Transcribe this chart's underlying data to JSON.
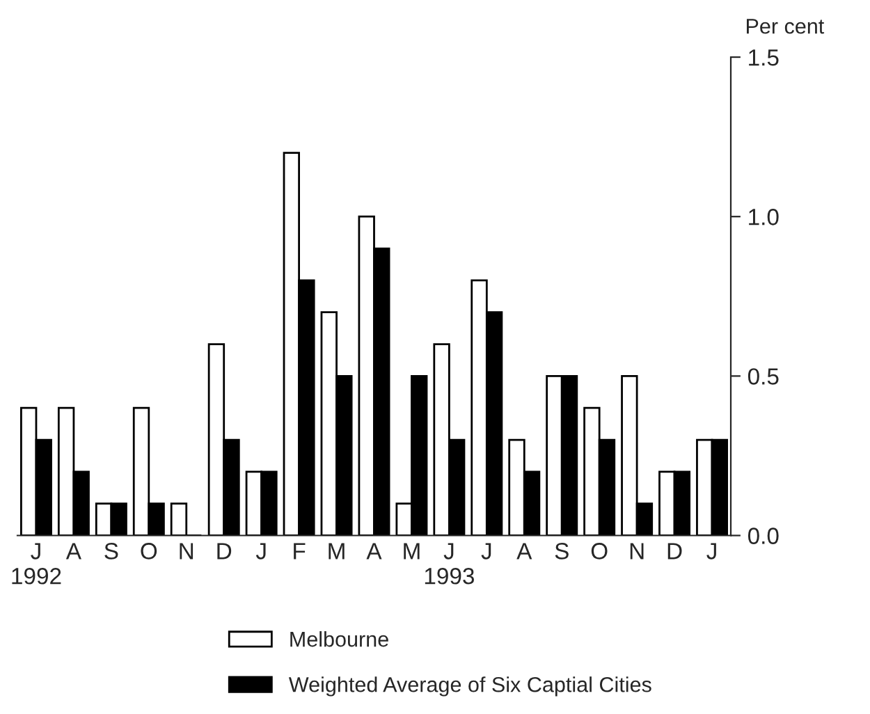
{
  "chart_data": {
    "type": "bar",
    "ylabel": "Per cent",
    "categories": [
      "J\n1992",
      "A",
      "S",
      "O",
      "N",
      "D",
      "J",
      "F",
      "M",
      "A",
      "M",
      "J\n1993",
      "J",
      "A",
      "S",
      "O",
      "N",
      "D",
      "J"
    ],
    "series": [
      {
        "name": "Melbourne",
        "color": "#ffffff",
        "values": [
          0.4,
          0.4,
          0.1,
          0.4,
          0.1,
          0.6,
          0.2,
          1.2,
          0.7,
          1.0,
          0.1,
          0.6,
          0.8,
          0.3,
          0.5,
          0.4,
          0.5,
          0.2,
          0.3
        ]
      },
      {
        "name": "Weighted Average of Six Captial Cities",
        "color": "#000000",
        "values": [
          0.3,
          0.2,
          0.1,
          0.1,
          0.0,
          0.3,
          0.2,
          0.8,
          0.5,
          0.9,
          0.5,
          0.3,
          0.7,
          0.2,
          0.5,
          0.3,
          0.1,
          0.2,
          0.3
        ]
      }
    ],
    "ylim": [
      0,
      1.5
    ],
    "yticks": [
      {
        "value": 0,
        "label": "0.0"
      },
      0.5,
      {
        "value": 1,
        "label": "1.0"
      },
      1.5
    ],
    "grid": false,
    "legend": "bottom"
  }
}
